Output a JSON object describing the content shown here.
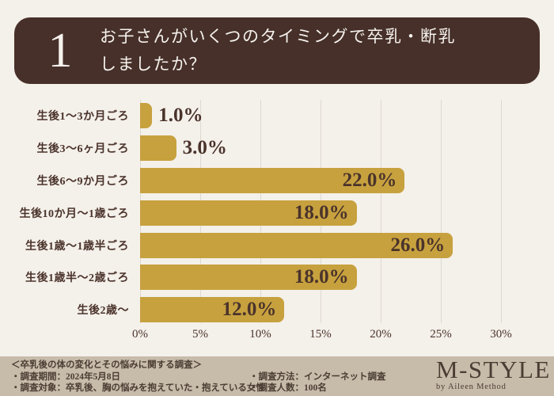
{
  "page": {
    "background": "#F4F0EA"
  },
  "header": {
    "number": "1",
    "question_line1": "お子さんがいくつのタイミングで卒乳・断乳",
    "question_line2": "しましたか？",
    "bg_color": "#463029",
    "text_color": "#F6F2EE"
  },
  "chart_data": {
    "type": "bar",
    "orientation": "horizontal",
    "title": "お子さんがいくつのタイミングで卒乳・断乳しましたか？",
    "categories": [
      "生後1〜3か月ごろ",
      "生後3〜6ヶ月ごろ",
      "生後6〜9か月ごろ",
      "生後10か月〜1歳ごろ",
      "生後1歳〜1歳半ごろ",
      "生後1歳半〜2歳ごろ",
      "生後2歳〜"
    ],
    "values": [
      1.0,
      3.0,
      22.0,
      18.0,
      26.0,
      18.0,
      12.0
    ],
    "value_labels": [
      "1.0%",
      "3.0%",
      "22.0%",
      "18.0%",
      "26.0%",
      "18.0%",
      "12.0%"
    ],
    "x_ticks": [
      "0%",
      "5%",
      "10%",
      "15%",
      "20%",
      "25%",
      "30%"
    ],
    "xlim": [
      0,
      30
    ],
    "grid": true,
    "legend": false,
    "bar_color": "#C7A13E",
    "gridline_color": "#DED9D1",
    "label_color": "#4A332B"
  },
  "footer": {
    "survey_title": "＜卒乳後の体の変化とその悩みに関する調査＞",
    "period": "・調査期間：2024年5月8日",
    "target": "・調査対象：卒乳後、胸の悩みを抱えていた・抱えている女性",
    "method": "・調査方法：インターネット調査",
    "respondents": "・調査人数：100名",
    "logo": "M-STYLE",
    "logo_sub": "by Aileen Method",
    "bg_color": "#C7BBAA",
    "text_color": "#4A3D33"
  }
}
